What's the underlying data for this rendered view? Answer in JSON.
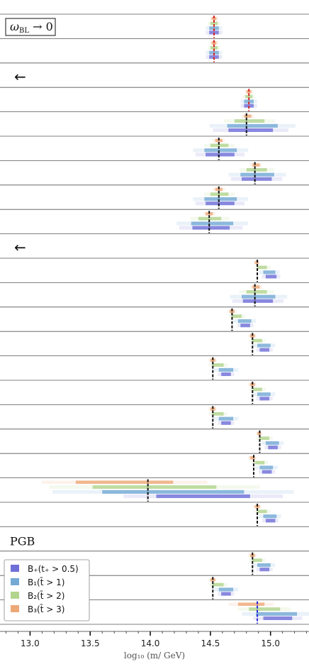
{
  "chart_data": {
    "type": "bar",
    "xlabel": "log₁₀ (m/ GeV)",
    "xlim": [
      12.75,
      15.32
    ],
    "xticks": [
      "13.0",
      "13.5",
      "14.0",
      "14.5",
      "15.0"
    ],
    "grid": false,
    "legend_position": "bottom-left",
    "legend": [
      {
        "key": "Bplus",
        "label": "B₊(t₊ > 0.5)",
        "color": "#6f6fd8"
      },
      {
        "key": "B1",
        "label": "B₁(t̄ > 1)",
        "color": "#74a9d4"
      },
      {
        "key": "B2",
        "label": "B₂(t̄ > 2)",
        "color": "#b2d58e"
      },
      {
        "key": "B3",
        "label": "B₃(t̄ > 3)",
        "color": "#eda877"
      }
    ],
    "section_labels": [
      "ω_BL → 0",
      "←",
      "←",
      "PGB"
    ],
    "rows": [
      {
        "type": "header",
        "label": "ωBL → 0",
        "boxed": true,
        "marker": 14.53,
        "marker_color": "#d62728",
        "bands": {
          "B3": [
            14.51,
            14.55
          ],
          "B2": [
            14.5,
            14.56
          ],
          "B1": [
            14.49,
            14.57
          ],
          "Bplus": [
            14.49,
            14.57
          ]
        }
      },
      {
        "type": "data",
        "marker": 14.53,
        "marker_color": "#d62728",
        "bands": {
          "B3": [
            14.51,
            14.55
          ],
          "B2": [
            14.5,
            14.56
          ],
          "B1": [
            14.49,
            14.57
          ],
          "Bplus": [
            14.49,
            14.57
          ]
        }
      },
      {
        "type": "header",
        "label": "←"
      },
      {
        "type": "data",
        "marker": 14.82,
        "marker_color": "#d62728",
        "bands": {
          "B3": [
            14.8,
            14.84
          ],
          "B2": [
            14.79,
            14.85
          ],
          "B1": [
            14.78,
            14.86
          ],
          "Bplus": [
            14.78,
            14.86
          ]
        }
      },
      {
        "type": "data",
        "marker": 14.8,
        "marker_color": "#111111",
        "bands": {
          "B3": [
            14.78,
            14.84
          ],
          "B2": [
            14.7,
            14.95
          ],
          "B1": [
            14.64,
            15.06
          ],
          "Bplus": [
            14.65,
            15.02
          ]
        }
      },
      {
        "type": "data",
        "marker": 14.57,
        "marker_color": "#111111",
        "bands": {
          "B3": [
            14.54,
            14.6
          ],
          "B2": [
            14.5,
            14.65
          ],
          "B1": [
            14.45,
            14.72
          ],
          "Bplus": [
            14.46,
            14.7
          ]
        }
      },
      {
        "type": "data",
        "marker": 14.87,
        "marker_color": "#111111",
        "bands": {
          "B3": [
            14.85,
            14.91
          ],
          "B2": [
            14.8,
            14.97
          ],
          "B1": [
            14.75,
            15.03
          ],
          "Bplus": [
            14.76,
            15.01
          ]
        }
      },
      {
        "type": "data",
        "marker": 14.57,
        "marker_color": "#111111",
        "bands": {
          "B3": [
            14.54,
            14.6
          ],
          "B2": [
            14.5,
            14.65
          ],
          "B1": [
            14.45,
            14.72
          ],
          "Bplus": [
            14.46,
            14.7
          ]
        }
      },
      {
        "type": "data",
        "marker": 14.49,
        "marker_color": "#111111",
        "bands": {
          "B3": [
            14.46,
            14.52
          ],
          "B2": [
            14.4,
            14.59
          ],
          "B1": [
            14.34,
            14.69
          ],
          "Bplus": [
            14.35,
            14.66
          ]
        }
      },
      {
        "type": "header",
        "label": "←"
      },
      {
        "type": "data",
        "marker": 14.89,
        "marker_color": "#111111",
        "bands": {
          "B3": [
            14.87,
            14.9
          ],
          "B2": [
            14.89,
            14.97
          ],
          "B1": [
            14.94,
            15.04
          ],
          "Bplus": [
            14.96,
            15.05
          ]
        }
      },
      {
        "type": "data",
        "marker": 14.87,
        "marker_color": "#111111",
        "bands": {
          "B3": [
            14.85,
            14.91
          ],
          "B2": [
            14.8,
            14.97
          ],
          "B1": [
            14.76,
            15.04
          ],
          "Bplus": [
            14.77,
            15.02
          ]
        }
      },
      {
        "type": "data",
        "marker": 14.68,
        "marker_color": "#111111",
        "bands": {
          "B3": [
            14.66,
            14.7
          ],
          "B2": [
            14.68,
            14.76
          ],
          "B1": [
            14.73,
            14.84
          ],
          "Bplus": [
            14.75,
            14.83
          ]
        }
      },
      {
        "type": "data",
        "marker": 14.85,
        "marker_color": "#111111",
        "bands": {
          "B3": [
            14.83,
            14.87
          ],
          "B2": [
            14.85,
            14.93
          ],
          "B1": [
            14.89,
            15.0
          ],
          "Bplus": [
            14.91,
            14.99
          ]
        }
      },
      {
        "type": "data",
        "marker": 14.52,
        "marker_color": "#111111",
        "bands": {
          "B3": [
            14.5,
            14.54
          ],
          "B2": [
            14.52,
            14.61
          ],
          "B1": [
            14.57,
            14.69
          ],
          "Bplus": [
            14.59,
            14.67
          ]
        }
      },
      {
        "type": "data",
        "marker": 14.85,
        "marker_color": "#111111",
        "bands": {
          "B3": [
            14.83,
            14.87
          ],
          "B2": [
            14.85,
            14.93
          ],
          "B1": [
            14.89,
            15.0
          ],
          "Bplus": [
            14.91,
            14.99
          ]
        }
      },
      {
        "type": "data",
        "marker": 14.52,
        "marker_color": "#111111",
        "bands": {
          "B3": [
            14.5,
            14.54
          ],
          "B2": [
            14.52,
            14.61
          ],
          "B1": [
            14.57,
            14.69
          ],
          "Bplus": [
            14.59,
            14.67
          ]
        }
      },
      {
        "type": "data",
        "marker": 14.91,
        "marker_color": "#111111",
        "bands": {
          "B3": [
            14.89,
            14.92
          ],
          "B2": [
            14.91,
            14.99
          ],
          "B1": [
            14.96,
            15.07
          ],
          "Bplus": [
            14.98,
            15.06
          ]
        }
      },
      {
        "type": "data",
        "marker": 14.86,
        "marker_color": "#111111",
        "bands": {
          "B3": [
            14.83,
            14.87
          ],
          "B2": [
            14.87,
            14.95
          ],
          "B1": [
            14.91,
            15.02
          ],
          "Bplus": [
            14.93,
            15.01
          ]
        }
      },
      {
        "type": "data",
        "marker": 13.98,
        "marker_color": "#111111",
        "bands": {
          "B3": [
            13.38,
            14.19
          ],
          "B2": [
            13.52,
            14.55
          ],
          "B1": [
            13.6,
            14.78
          ],
          "Bplus": [
            14.05,
            14.83
          ]
        }
      },
      {
        "type": "data",
        "marker": 14.89,
        "marker_color": "#111111",
        "bands": {
          "B3": [
            14.87,
            14.91
          ],
          "B2": [
            14.89,
            14.97
          ],
          "B1": [
            14.94,
            15.05
          ],
          "Bplus": [
            14.96,
            15.04
          ]
        }
      },
      {
        "type": "header",
        "label": "PGB"
      },
      {
        "type": "data",
        "marker": 14.85,
        "marker_color": "#111111",
        "bands": {
          "B3": [
            14.83,
            14.87
          ],
          "B2": [
            14.85,
            14.93
          ],
          "B1": [
            14.89,
            15.0
          ],
          "Bplus": [
            14.91,
            14.99
          ]
        }
      },
      {
        "type": "data",
        "marker": 14.52,
        "marker_color": "#111111",
        "bands": {
          "B3": [
            14.5,
            14.54
          ],
          "B2": [
            14.52,
            14.61
          ],
          "B1": [
            14.57,
            14.69
          ],
          "Bplus": [
            14.59,
            14.67
          ]
        }
      },
      {
        "type": "data",
        "marker": 14.89,
        "marker_color": "#2a2ad6",
        "bands": {
          "B3": [
            14.73,
            14.95
          ],
          "B2": [
            14.82,
            15.08
          ],
          "B1": [
            14.88,
            15.22
          ],
          "Bplus": [
            14.94,
            15.18
          ]
        }
      }
    ]
  }
}
